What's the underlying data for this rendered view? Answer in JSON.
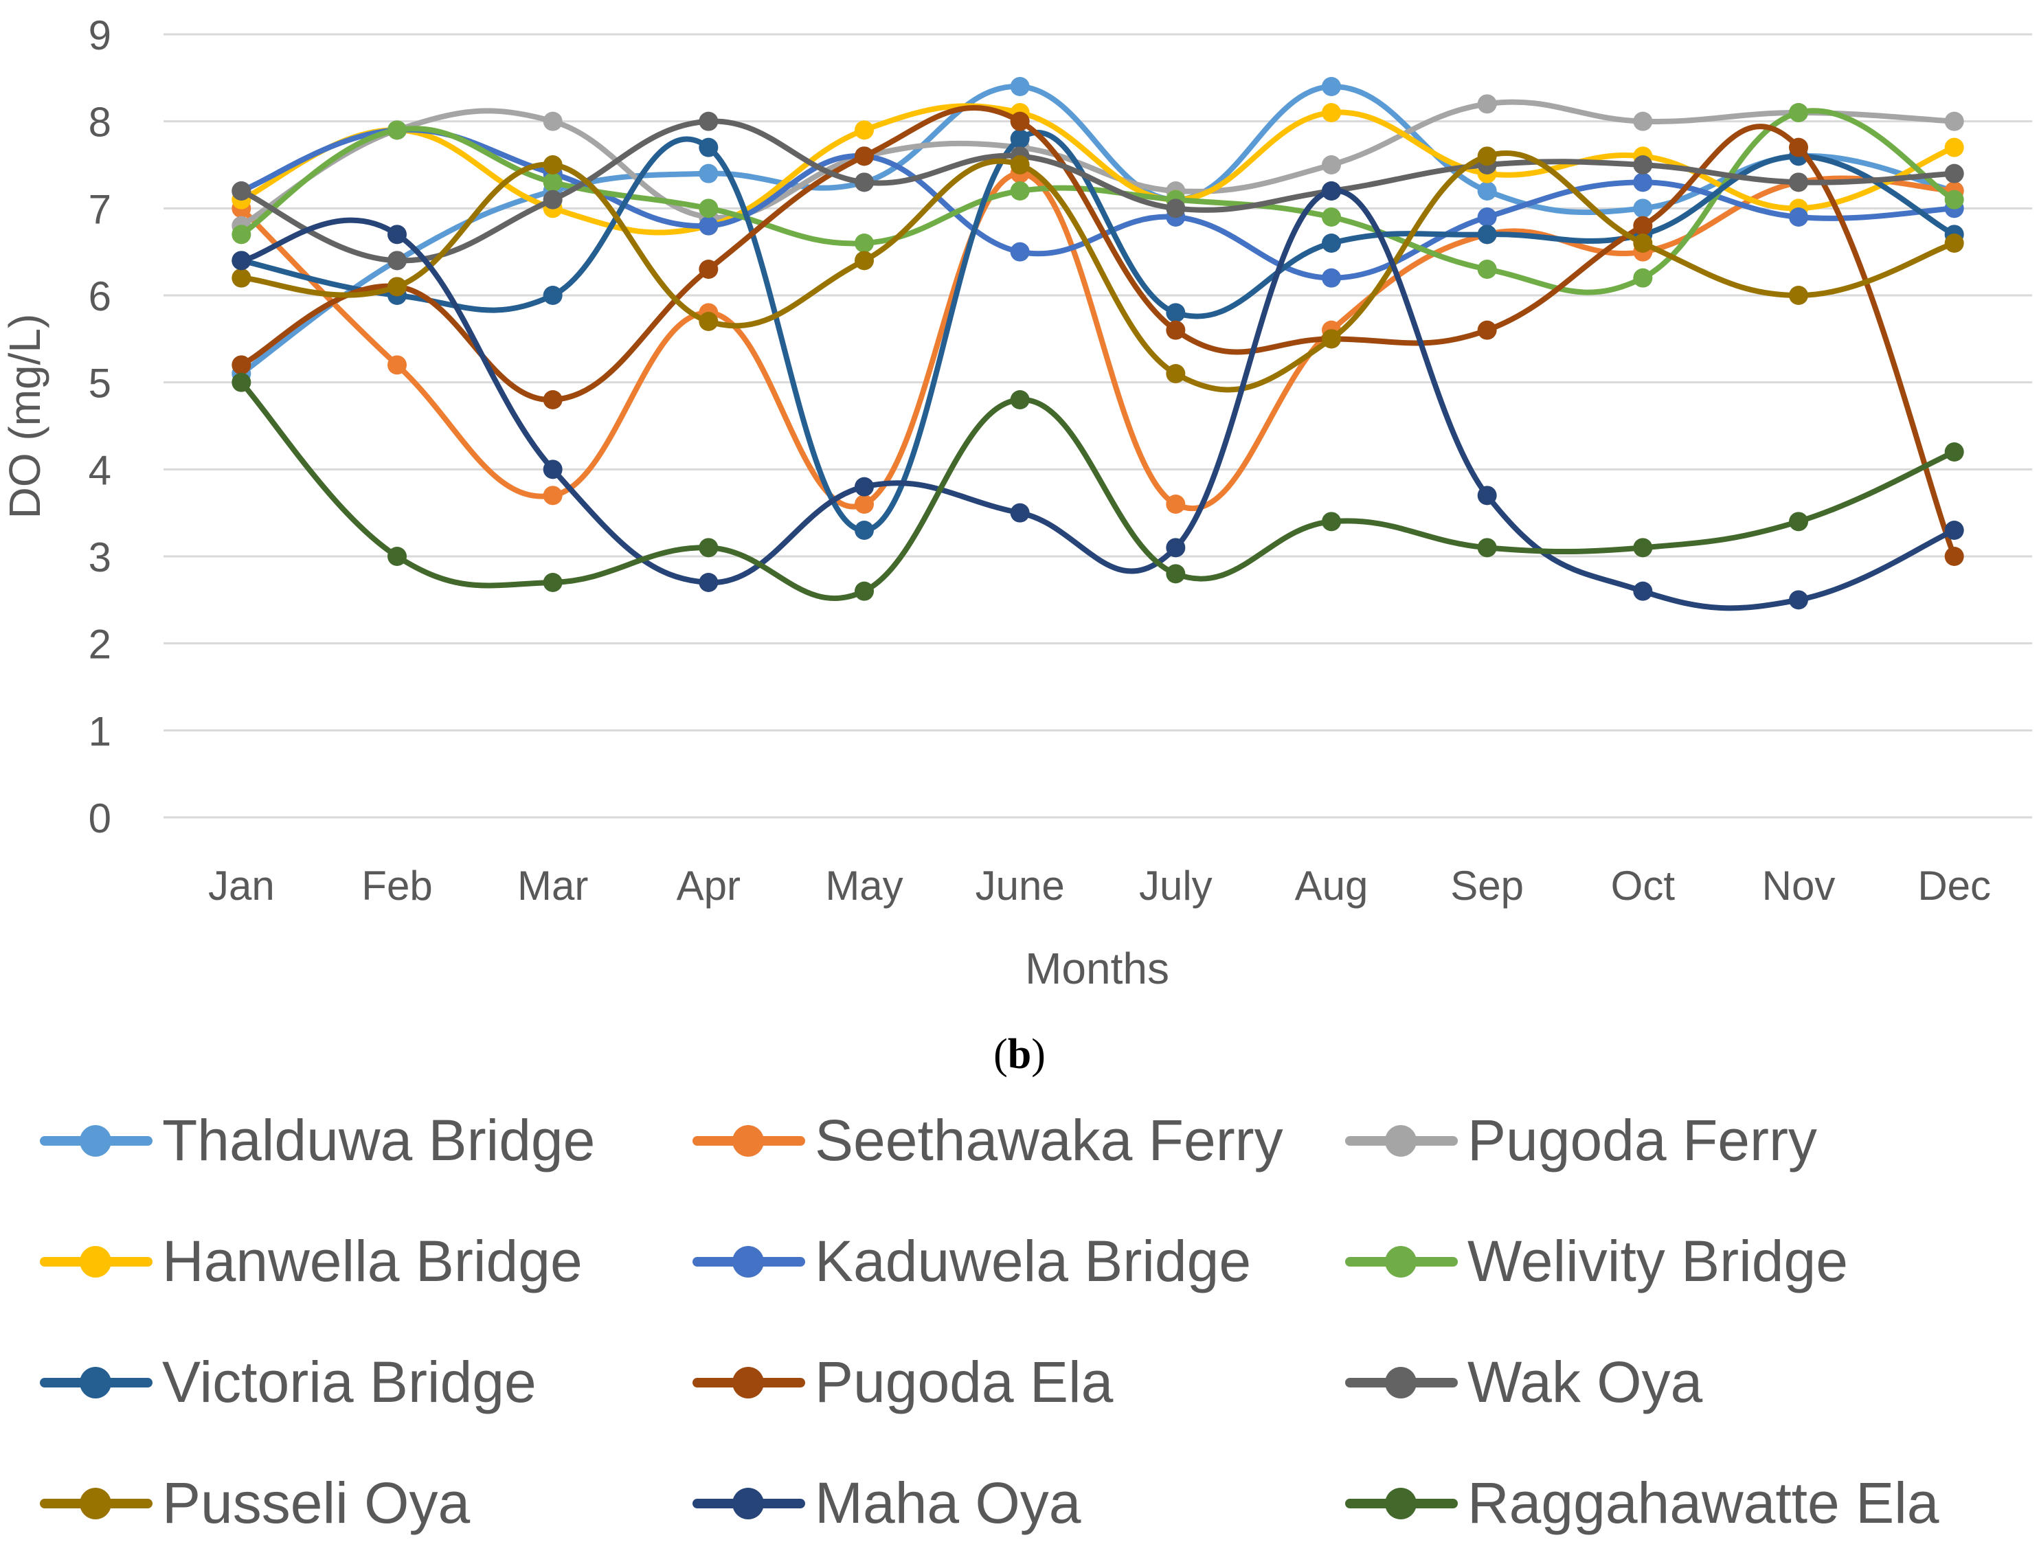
{
  "chart_data": {
    "type": "line",
    "title": "",
    "xlabel": "Months",
    "ylabel": "DO (mg/L)",
    "ylim": [
      0,
      9
    ],
    "yticks": [
      0,
      1,
      2,
      3,
      4,
      5,
      6,
      7,
      8,
      9
    ],
    "grid": true,
    "legend_position": "bottom",
    "categories": [
      "Jan",
      "Feb",
      "Mar",
      "Apr",
      "May",
      "June",
      "July",
      "Aug",
      "Sep",
      "Oct",
      "Nov",
      "Dec"
    ],
    "series": [
      {
        "name": "Thalduwa Bridge",
        "color": "#5B9BD5",
        "values": [
          5.1,
          6.4,
          7.2,
          7.4,
          7.3,
          8.4,
          7.1,
          8.4,
          7.2,
          7.0,
          7.6,
          7.2
        ]
      },
      {
        "name": "Seethawaka Ferry",
        "color": "#ED7D31",
        "values": [
          7.0,
          5.2,
          3.7,
          5.8,
          3.6,
          7.4,
          3.6,
          5.6,
          6.7,
          6.5,
          7.3,
          7.2
        ]
      },
      {
        "name": "Pugoda Ferry",
        "color": "#A5A5A5",
        "values": [
          6.8,
          7.9,
          8.0,
          6.9,
          7.6,
          7.7,
          7.2,
          7.5,
          8.2,
          8.0,
          8.1,
          8.0
        ]
      },
      {
        "name": "Hanwella Bridge",
        "color": "#FFC000",
        "values": [
          7.1,
          7.9,
          7.0,
          6.8,
          7.9,
          8.1,
          7.1,
          8.1,
          7.4,
          7.6,
          7.0,
          7.7
        ]
      },
      {
        "name": "Kaduwela Bridge",
        "color": "#4472C4",
        "values": [
          7.2,
          7.9,
          7.4,
          6.8,
          7.6,
          6.5,
          6.9,
          6.2,
          6.9,
          7.3,
          6.9,
          7.0
        ]
      },
      {
        "name": "Welivity Bridge",
        "color": "#70AD47",
        "values": [
          6.7,
          7.9,
          7.3,
          7.0,
          6.6,
          7.2,
          7.1,
          6.9,
          6.3,
          6.2,
          8.1,
          7.1
        ]
      },
      {
        "name": "Victoria Bridge",
        "color": "#255E91",
        "values": [
          6.4,
          6.0,
          6.0,
          7.7,
          3.3,
          7.8,
          5.8,
          6.6,
          6.7,
          6.7,
          7.6,
          6.7
        ]
      },
      {
        "name": "Pugoda Ela",
        "color": "#9E480E",
        "values": [
          5.2,
          6.1,
          4.8,
          6.3,
          7.6,
          8.0,
          5.6,
          5.5,
          5.6,
          6.8,
          7.7,
          3.0
        ]
      },
      {
        "name": "Wak Oya",
        "color": "#636363",
        "values": [
          7.2,
          6.4,
          7.1,
          8.0,
          7.3,
          7.6,
          7.0,
          7.2,
          7.5,
          7.5,
          7.3,
          7.4
        ]
      },
      {
        "name": "Pusseli Oya",
        "color": "#997300",
        "values": [
          6.2,
          6.1,
          7.5,
          5.7,
          6.4,
          7.5,
          5.1,
          5.5,
          7.6,
          6.6,
          6.0,
          6.6
        ]
      },
      {
        "name": "Maha Oya",
        "color": "#264478",
        "values": [
          6.4,
          6.7,
          4.0,
          2.7,
          3.8,
          3.5,
          3.1,
          7.2,
          3.7,
          2.6,
          2.5,
          3.3
        ]
      },
      {
        "name": "Raggahawatte Ela",
        "color": "#43682B",
        "values": [
          5.0,
          3.0,
          2.7,
          3.1,
          2.6,
          4.8,
          2.8,
          3.4,
          3.1,
          3.1,
          3.4,
          4.2
        ]
      }
    ]
  },
  "caption": {
    "label": "b"
  }
}
